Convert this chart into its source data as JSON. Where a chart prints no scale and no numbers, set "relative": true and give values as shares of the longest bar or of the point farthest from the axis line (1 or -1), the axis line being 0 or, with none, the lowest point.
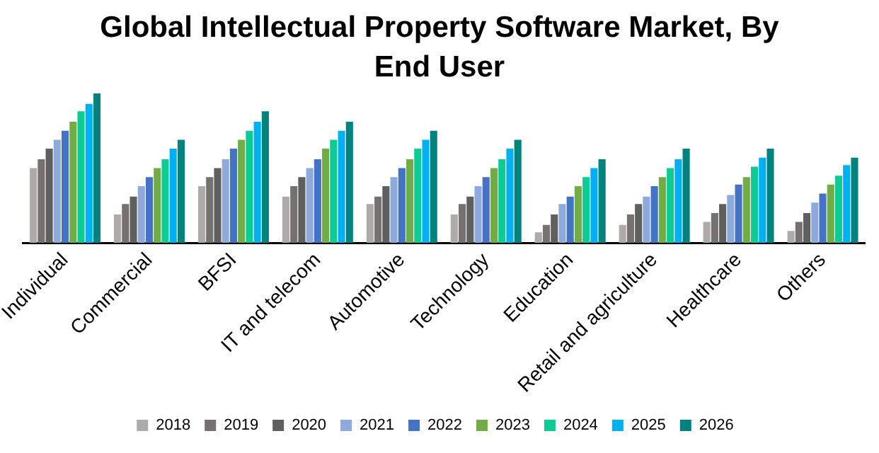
{
  "chart_data": {
    "type": "bar",
    "title": "Global Intellectual Property Software Market, By End User",
    "relative": true,
    "grid": false,
    "legend": "bottom",
    "categories": [
      "Individual",
      "Commercial",
      "BFSI",
      "IT and telecom",
      "Automotive",
      "Technology",
      "Education",
      "Retail and agriculture",
      "Healthcare",
      "Others"
    ],
    "series": [
      {
        "name": "2018",
        "color": "#aeaaaa",
        "values": [
          0.5,
          0.19,
          0.38,
          0.31,
          0.26,
          0.19,
          0.07,
          0.12,
          0.14,
          0.08
        ]
      },
      {
        "name": "2019",
        "color": "#767171",
        "values": [
          0.56,
          0.26,
          0.44,
          0.38,
          0.31,
          0.26,
          0.12,
          0.19,
          0.2,
          0.14
        ]
      },
      {
        "name": "2020",
        "color": "#5f5f5f",
        "values": [
          0.63,
          0.31,
          0.5,
          0.44,
          0.38,
          0.31,
          0.19,
          0.26,
          0.26,
          0.2
        ]
      },
      {
        "name": "2021",
        "color": "#8eaadb",
        "values": [
          0.69,
          0.38,
          0.56,
          0.5,
          0.44,
          0.38,
          0.26,
          0.31,
          0.32,
          0.27
        ]
      },
      {
        "name": "2022",
        "color": "#4472c4",
        "values": [
          0.75,
          0.44,
          0.63,
          0.56,
          0.5,
          0.44,
          0.31,
          0.38,
          0.39,
          0.33
        ]
      },
      {
        "name": "2023",
        "color": "#70ad47",
        "values": [
          0.81,
          0.5,
          0.69,
          0.63,
          0.56,
          0.5,
          0.38,
          0.44,
          0.44,
          0.39
        ]
      },
      {
        "name": "2024",
        "color": "#0dcc93",
        "values": [
          0.88,
          0.56,
          0.75,
          0.69,
          0.63,
          0.56,
          0.44,
          0.5,
          0.51,
          0.45
        ]
      },
      {
        "name": "2025",
        "color": "#00b0f0",
        "values": [
          0.93,
          0.63,
          0.81,
          0.75,
          0.69,
          0.63,
          0.5,
          0.56,
          0.57,
          0.52
        ]
      },
      {
        "name": "2026",
        "color": "#00827f",
        "values": [
          1,
          0.69,
          0.88,
          0.81,
          0.75,
          0.69,
          0.56,
          0.63,
          0.63,
          0.57
        ]
      }
    ]
  }
}
